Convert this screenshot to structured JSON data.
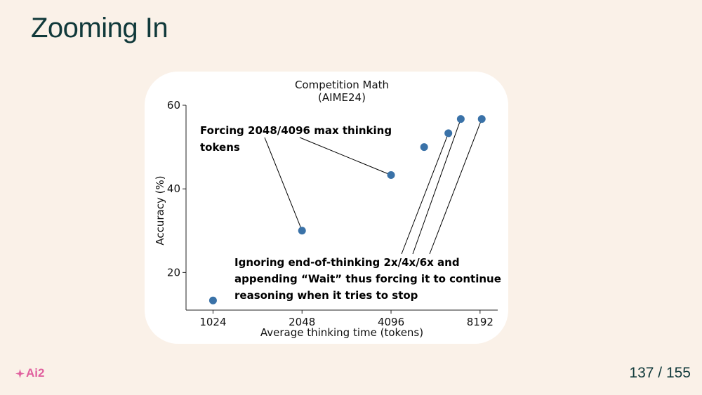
{
  "slide": {
    "title": "Zooming In",
    "page_number": "137 / 155",
    "logo_text": "Ai2",
    "logo_icon": "ai2-sparkle-icon"
  },
  "colors": {
    "background": "#faf1e8",
    "title": "#10393a",
    "point": "#3a72a8",
    "logo": "#e0609e"
  },
  "chart_data": {
    "type": "scatter",
    "title_lines": [
      "Competition Math",
      "(AIME24)"
    ],
    "xlabel": "Average thinking time (tokens)",
    "ylabel": "Accuracy (%)",
    "x_scale": "log2",
    "xticks": [
      1024,
      2048,
      4096,
      8192
    ],
    "xtick_labels": [
      "1024",
      "2048",
      "4096",
      "8192"
    ],
    "yticks": [
      20,
      40,
      60
    ],
    "ytick_labels": [
      "20",
      "40",
      "60"
    ],
    "xlim": [
      830,
      9400
    ],
    "ylim": [
      11,
      60
    ],
    "grid": false,
    "points": [
      {
        "x": 1024,
        "y": 13.3
      },
      {
        "x": 2048,
        "y": 30.0
      },
      {
        "x": 4096,
        "y": 43.3
      },
      {
        "x": 5300,
        "y": 50.0
      },
      {
        "x": 6400,
        "y": 53.3
      },
      {
        "x": 7050,
        "y": 56.7
      },
      {
        "x": 8300,
        "y": 56.7
      }
    ],
    "annotations": [
      {
        "lines": [
          "Forcing 2048/4096 max thinking",
          "tokens"
        ],
        "targets": [
          1,
          2
        ]
      },
      {
        "lines": [
          "Ignoring end-of-thinking 2x/4x/6x and",
          "appending “Wait” thus forcing it to continue",
          "reasoning when it tries to stop"
        ],
        "targets": [
          4,
          5,
          6
        ]
      }
    ]
  }
}
